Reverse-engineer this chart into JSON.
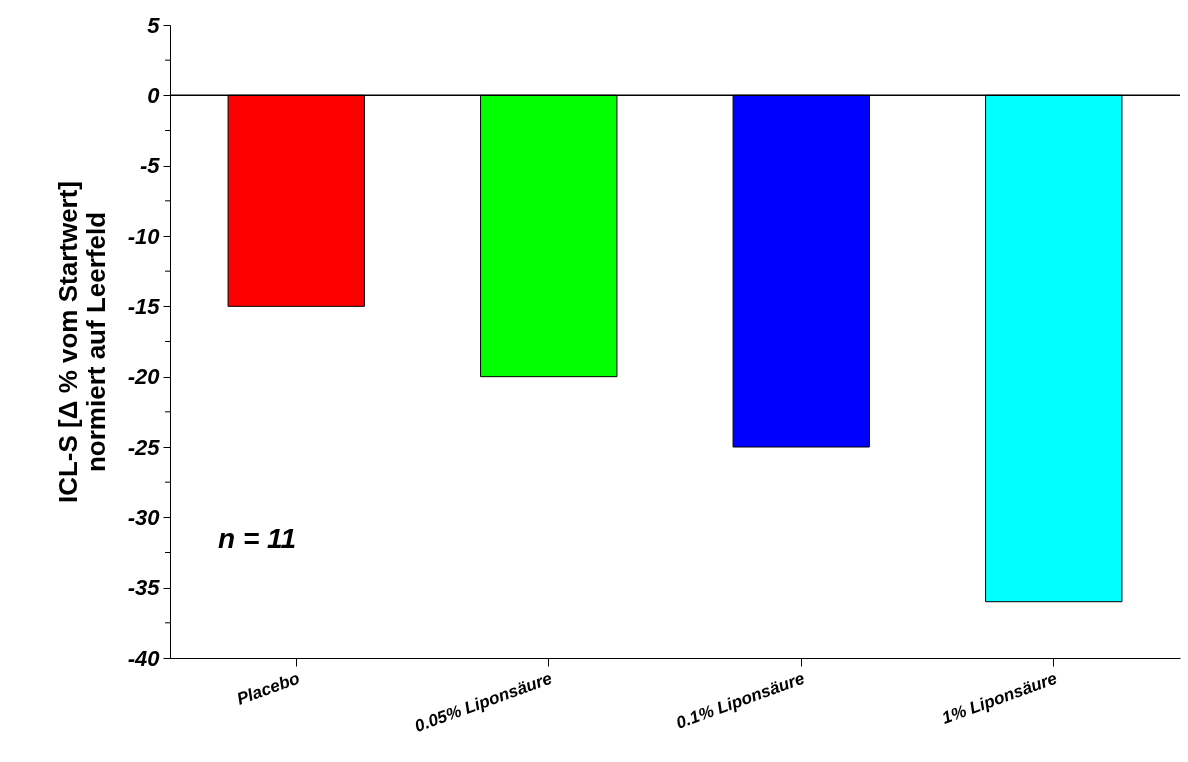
{
  "chart_data": {
    "type": "bar",
    "ylabel": "ICL-S [Δ % vom Startwert]\nnormiert auf Leerfeld",
    "categories": [
      "Placebo",
      "0.05% Liponsäure",
      "0.1% Liponsäure",
      "1% Liponsäure"
    ],
    "values": [
      -15,
      -20,
      -25,
      -36
    ],
    "colors": [
      "#ff0000",
      "#00ff00",
      "#0000ff",
      "#00ffff"
    ],
    "ylim": [
      -40,
      5
    ],
    "yticks": [
      -40,
      {
        "value": -37.5,
        "label": null
      },
      -35,
      {
        "value": -32.5,
        "label": null
      },
      -30,
      {
        "value": -27.5,
        "label": null
      },
      -25,
      {
        "value": -22.5,
        "label": null
      },
      -20,
      {
        "value": -17.5,
        "label": null
      },
      -15,
      {
        "value": -12.5,
        "label": null
      },
      -10,
      {
        "value": -7.5,
        "label": null
      },
      -5,
      {
        "value": -2.5,
        "label": null
      },
      0,
      {
        "value": 2.5,
        "label": null
      },
      5
    ],
    "ref_lines": [
      {
        "axis": "y",
        "value": 0
      }
    ],
    "annotations": [
      "n = 11"
    ],
    "grid": false
  }
}
